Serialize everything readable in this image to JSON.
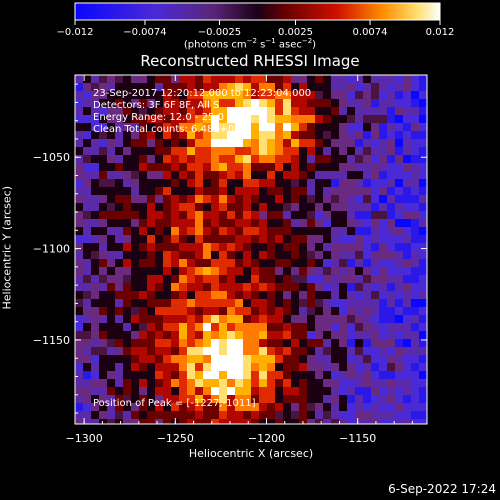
{
  "chart_data": {
    "type": "heatmap",
    "title": "Reconstructed RHESSI Image",
    "xlabel": "Heliocentric X (arcsec)",
    "ylabel": "Heliocentric Y (arcsec)",
    "xlim": [
      -1305,
      -1112
    ],
    "ylim": [
      -1196,
      -1005
    ],
    "x_ticks": [
      -1300,
      -1250,
      -1200,
      -1150
    ],
    "y_ticks": [
      -1150,
      -1100,
      -1050
    ],
    "x_tick_labels": [
      "−1300",
      "−1250",
      "−1200",
      "−1150"
    ],
    "y_tick_labels": [
      "−1150",
      "−1100",
      "−1050"
    ],
    "colorbar": {
      "range": [
        -0.012,
        0.012
      ],
      "ticks": [
        -0.012,
        -0.0074,
        -0.0025,
        0.0025,
        0.0074,
        0.012
      ],
      "tick_labels": [
        "−0.012",
        "−0.0074",
        "−0.0025",
        "0.0025",
        "0.0074",
        "0.012"
      ],
      "units_text": "(photons cm",
      "units_sup1": "−2",
      "units_mid": " s",
      "units_sup2": "−1",
      "units_mid2": " asec",
      "units_sup3": "−2",
      "units_end": ")"
    },
    "grid": false,
    "peak_position": [
      -1227,
      -1011
    ]
  },
  "annotations": {
    "line1": "23-Sep-2017 12:20:12.000 to 12:23:04.000",
    "line2": "Detectors: 3F 6F 8F, All S",
    "line3": "Energy Range: 12.0 - 25.0 keV",
    "line4": "Clean     Total counts: 6.48E+03",
    "peak": "Position of Peak = [-1227,-1011]"
  },
  "footer": "6-Sep-2022 17:24"
}
